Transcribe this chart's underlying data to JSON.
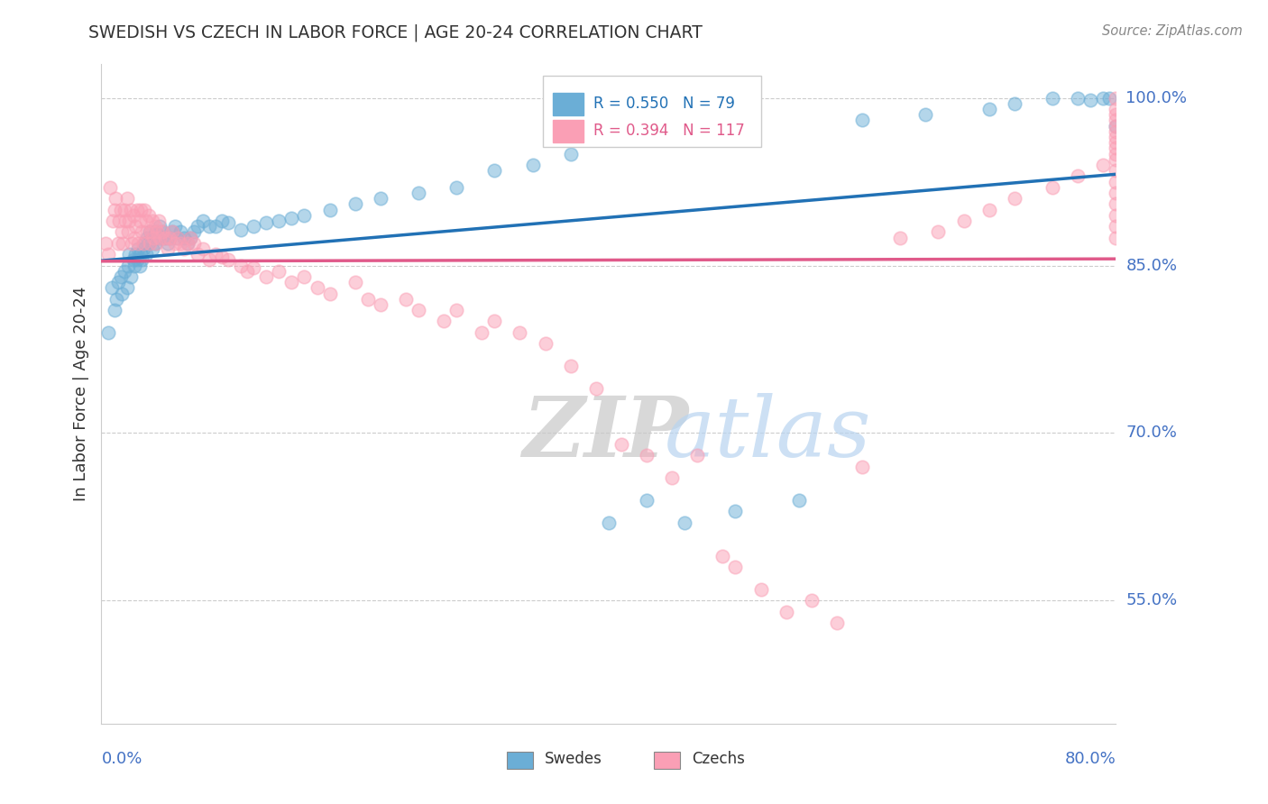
{
  "title": "SWEDISH VS CZECH IN LABOR FORCE | AGE 20-24 CORRELATION CHART",
  "source": "Source: ZipAtlas.com",
  "xlabel_bottom_left": "0.0%",
  "xlabel_bottom_right": "80.0%",
  "ylabel": "In Labor Force | Age 20-24",
  "ytick_labels": [
    "100.0%",
    "85.0%",
    "70.0%",
    "55.0%"
  ],
  "ytick_values": [
    1.0,
    0.85,
    0.7,
    0.55
  ],
  "xmin": 0.0,
  "xmax": 0.8,
  "ymin": 0.44,
  "ymax": 1.03,
  "r_swedish": 0.55,
  "n_swedish": 79,
  "r_czech": 0.394,
  "n_czech": 117,
  "blue_color": "#6baed6",
  "pink_color": "#fa9fb5",
  "blue_line_color": "#2171b5",
  "pink_line_color": "#e05a8a",
  "legend_label_swedish": "Swedes",
  "legend_label_czech": "Czechs",
  "watermark_zip": "ZIP",
  "watermark_atlas": "atlas",
  "sw_x": [
    0.005,
    0.008,
    0.01,
    0.012,
    0.013,
    0.015,
    0.016,
    0.018,
    0.02,
    0.021,
    0.022,
    0.023,
    0.025,
    0.026,
    0.027,
    0.028,
    0.029,
    0.03,
    0.031,
    0.032,
    0.033,
    0.034,
    0.035,
    0.036,
    0.037,
    0.038,
    0.04,
    0.041,
    0.042,
    0.043,
    0.045,
    0.046,
    0.048,
    0.05,
    0.052,
    0.054,
    0.056,
    0.058,
    0.06,
    0.062,
    0.065,
    0.068,
    0.07,
    0.073,
    0.076,
    0.08,
    0.085,
    0.09,
    0.095,
    0.1,
    0.11,
    0.12,
    0.13,
    0.14,
    0.15,
    0.16,
    0.18,
    0.2,
    0.22,
    0.25,
    0.28,
    0.31,
    0.34,
    0.37,
    0.4,
    0.43,
    0.46,
    0.5,
    0.55,
    0.6,
    0.65,
    0.7,
    0.72,
    0.75,
    0.77,
    0.78,
    0.79,
    0.795,
    0.8
  ],
  "sw_y": [
    0.79,
    0.83,
    0.81,
    0.82,
    0.835,
    0.84,
    0.825,
    0.845,
    0.83,
    0.85,
    0.86,
    0.84,
    0.855,
    0.85,
    0.86,
    0.855,
    0.865,
    0.85,
    0.86,
    0.855,
    0.865,
    0.87,
    0.86,
    0.875,
    0.87,
    0.88,
    0.865,
    0.875,
    0.87,
    0.88,
    0.875,
    0.885,
    0.88,
    0.875,
    0.87,
    0.875,
    0.88,
    0.885,
    0.875,
    0.88,
    0.875,
    0.87,
    0.875,
    0.88,
    0.885,
    0.89,
    0.885,
    0.885,
    0.89,
    0.888,
    0.882,
    0.885,
    0.888,
    0.89,
    0.892,
    0.895,
    0.9,
    0.905,
    0.91,
    0.915,
    0.92,
    0.935,
    0.94,
    0.95,
    0.62,
    0.64,
    0.62,
    0.63,
    0.64,
    0.98,
    0.985,
    0.99,
    0.995,
    1.0,
    1.0,
    0.998,
    1.0,
    1.0,
    0.975
  ],
  "cz_x": [
    0.003,
    0.005,
    0.007,
    0.009,
    0.01,
    0.011,
    0.013,
    0.014,
    0.015,
    0.016,
    0.017,
    0.018,
    0.019,
    0.02,
    0.021,
    0.022,
    0.023,
    0.024,
    0.025,
    0.026,
    0.027,
    0.028,
    0.029,
    0.03,
    0.031,
    0.032,
    0.033,
    0.034,
    0.035,
    0.036,
    0.037,
    0.038,
    0.039,
    0.04,
    0.041,
    0.042,
    0.043,
    0.044,
    0.045,
    0.046,
    0.048,
    0.05,
    0.052,
    0.054,
    0.056,
    0.058,
    0.06,
    0.062,
    0.065,
    0.068,
    0.07,
    0.073,
    0.076,
    0.08,
    0.085,
    0.09,
    0.095,
    0.1,
    0.11,
    0.115,
    0.12,
    0.13,
    0.14,
    0.15,
    0.16,
    0.17,
    0.18,
    0.2,
    0.21,
    0.22,
    0.24,
    0.25,
    0.27,
    0.28,
    0.3,
    0.31,
    0.33,
    0.35,
    0.37,
    0.39,
    0.41,
    0.43,
    0.45,
    0.47,
    0.49,
    0.5,
    0.52,
    0.54,
    0.56,
    0.58,
    0.6,
    0.63,
    0.66,
    0.68,
    0.7,
    0.72,
    0.75,
    0.77,
    0.79,
    0.8,
    0.8,
    0.8,
    0.8,
    0.8,
    0.8,
    0.8,
    0.8,
    0.8,
    0.8,
    0.8,
    0.8,
    0.8,
    0.8,
    0.8,
    0.8,
    0.8,
    0.8
  ],
  "cz_y": [
    0.87,
    0.86,
    0.92,
    0.89,
    0.9,
    0.91,
    0.87,
    0.89,
    0.9,
    0.88,
    0.87,
    0.9,
    0.89,
    0.91,
    0.88,
    0.89,
    0.9,
    0.87,
    0.895,
    0.875,
    0.885,
    0.9,
    0.87,
    0.89,
    0.9,
    0.88,
    0.87,
    0.9,
    0.89,
    0.88,
    0.895,
    0.87,
    0.88,
    0.89,
    0.875,
    0.885,
    0.87,
    0.88,
    0.89,
    0.875,
    0.88,
    0.875,
    0.865,
    0.875,
    0.88,
    0.87,
    0.875,
    0.87,
    0.865,
    0.87,
    0.875,
    0.87,
    0.86,
    0.865,
    0.855,
    0.86,
    0.858,
    0.855,
    0.85,
    0.845,
    0.848,
    0.84,
    0.845,
    0.835,
    0.84,
    0.83,
    0.825,
    0.835,
    0.82,
    0.815,
    0.82,
    0.81,
    0.8,
    0.81,
    0.79,
    0.8,
    0.79,
    0.78,
    0.76,
    0.74,
    0.69,
    0.68,
    0.66,
    0.68,
    0.59,
    0.58,
    0.56,
    0.54,
    0.55,
    0.53,
    0.67,
    0.875,
    0.88,
    0.89,
    0.9,
    0.91,
    0.92,
    0.93,
    0.94,
    0.95,
    0.96,
    0.97,
    0.98,
    0.99,
    1.0,
    0.985,
    0.975,
    0.965,
    0.955,
    0.945,
    0.935,
    0.925,
    0.915,
    0.905,
    0.895,
    0.885,
    0.875
  ]
}
